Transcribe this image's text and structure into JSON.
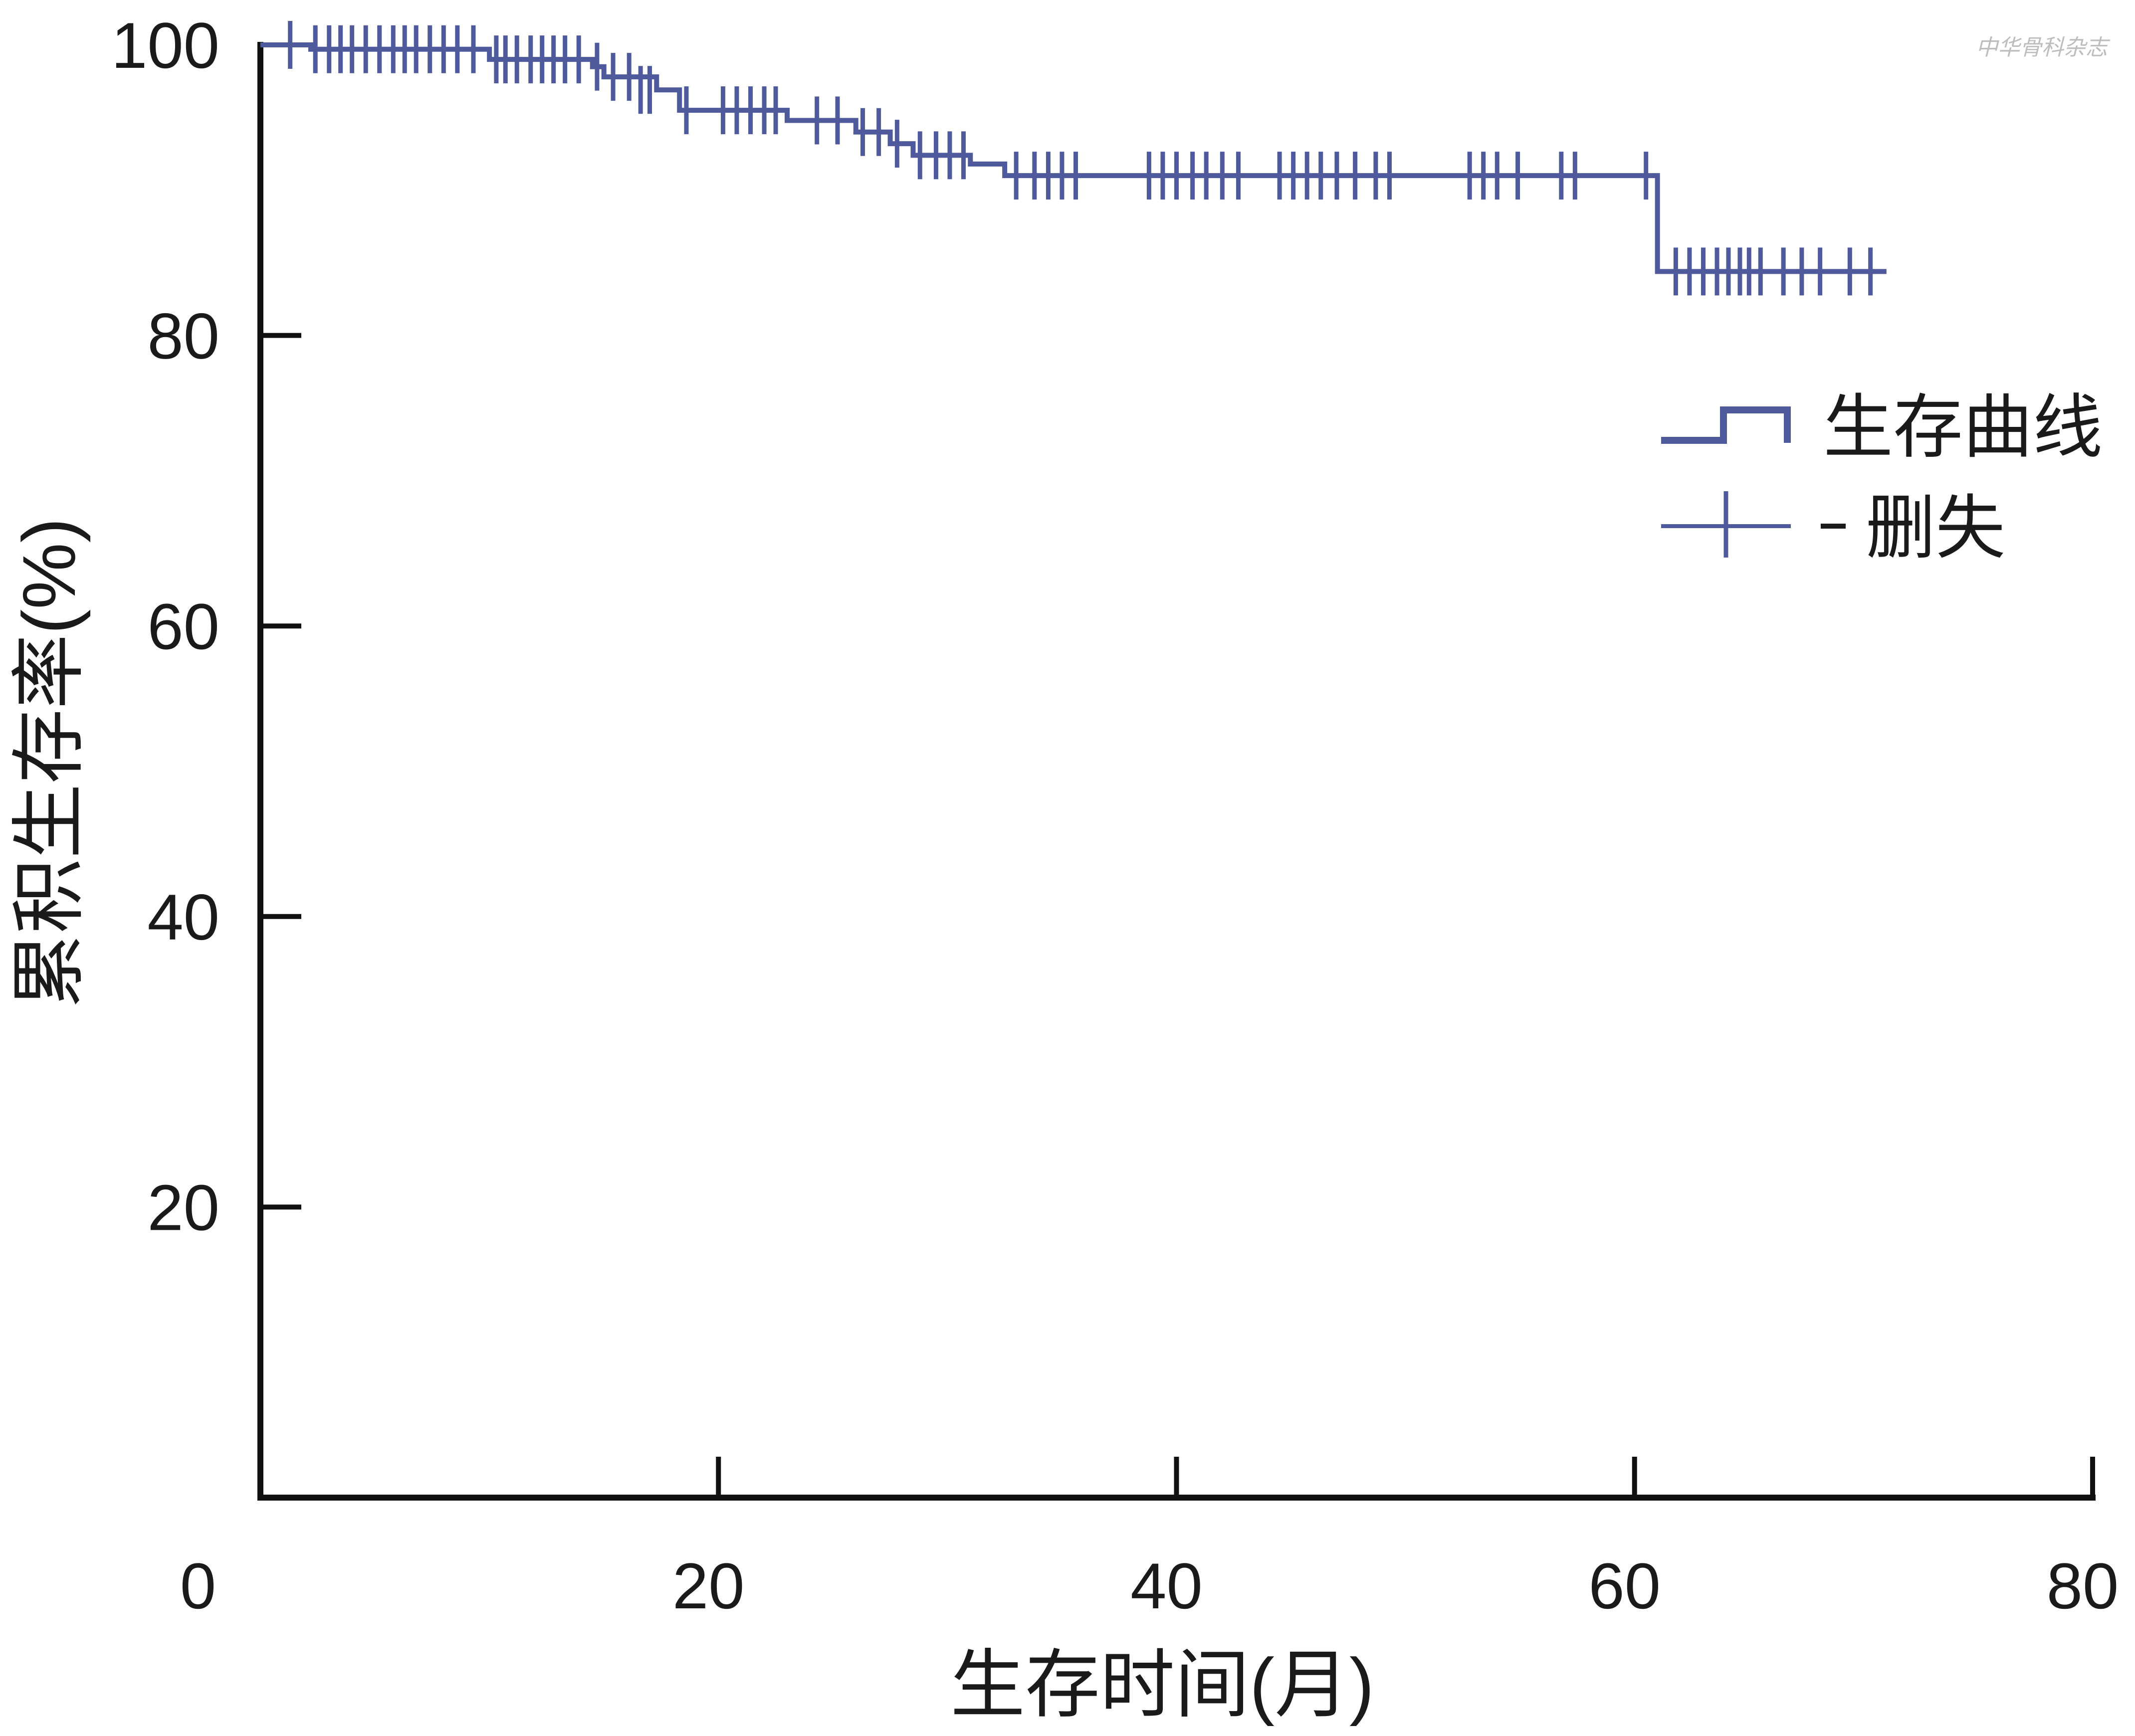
{
  "chart_data": {
    "type": "line",
    "subtype": "kaplan-meier",
    "xlabel": "生存时间(月)",
    "ylabel": "累积生存率(%)",
    "xlim": [
      0,
      80
    ],
    "ylim": [
      0,
      100
    ],
    "xticks": [
      "0",
      "20",
      "40",
      "60",
      "80"
    ],
    "yticks": [
      "20",
      "40",
      "60",
      "80",
      "100"
    ],
    "grid": false,
    "legend_position": "right",
    "series": [
      {
        "name": "生存曲线",
        "color": "#4f5a9c",
        "steps": [
          [
            0,
            100
          ],
          [
            2.2,
            99.7
          ],
          [
            10.0,
            99.0
          ],
          [
            14.5,
            98.5
          ],
          [
            15.0,
            97.8
          ],
          [
            17.3,
            96.9
          ],
          [
            18.3,
            95.5
          ],
          [
            23.0,
            94.8
          ],
          [
            26.0,
            94.0
          ],
          [
            27.5,
            93.2
          ],
          [
            28.5,
            92.4
          ],
          [
            31.0,
            91.8
          ],
          [
            32.5,
            91.0
          ],
          [
            61.0,
            84.4
          ],
          [
            71.0,
            84.4
          ]
        ]
      },
      {
        "name": "删失",
        "color": "#4f5a9c",
        "censored": [
          [
            1.3,
            100
          ],
          [
            2.4,
            99.7
          ],
          [
            3.0,
            99.7
          ],
          [
            3.5,
            99.7
          ],
          [
            4.0,
            99.7
          ],
          [
            4.6,
            99.7
          ],
          [
            5.2,
            99.7
          ],
          [
            5.8,
            99.7
          ],
          [
            6.3,
            99.7
          ],
          [
            6.8,
            99.7
          ],
          [
            7.4,
            99.7
          ],
          [
            8.0,
            99.7
          ],
          [
            8.6,
            99.7
          ],
          [
            9.3,
            99.7
          ],
          [
            10.3,
            99.0
          ],
          [
            10.7,
            99.0
          ],
          [
            11.2,
            99.0
          ],
          [
            11.8,
            99.0
          ],
          [
            12.3,
            99.0
          ],
          [
            12.8,
            99.0
          ],
          [
            13.3,
            99.0
          ],
          [
            13.9,
            99.0
          ],
          [
            14.7,
            98.5
          ],
          [
            15.4,
            97.8
          ],
          [
            16.1,
            97.8
          ],
          [
            16.6,
            96.9
          ],
          [
            17.0,
            96.9
          ],
          [
            18.6,
            95.5
          ],
          [
            20.2,
            95.5
          ],
          [
            20.8,
            95.5
          ],
          [
            21.4,
            95.5
          ],
          [
            22.0,
            95.5
          ],
          [
            22.5,
            95.5
          ],
          [
            24.3,
            94.8
          ],
          [
            25.2,
            94.8
          ],
          [
            26.3,
            94.0
          ],
          [
            27.0,
            94.0
          ],
          [
            27.8,
            93.2
          ],
          [
            28.8,
            92.4
          ],
          [
            29.5,
            92.4
          ],
          [
            30.1,
            92.4
          ],
          [
            30.7,
            92.4
          ],
          [
            33.0,
            91.0
          ],
          [
            33.8,
            91.0
          ],
          [
            34.4,
            91.0
          ],
          [
            35.0,
            91.0
          ],
          [
            35.6,
            91.0
          ],
          [
            38.8,
            91.0
          ],
          [
            39.4,
            91.0
          ],
          [
            40.0,
            91.0
          ],
          [
            40.7,
            91.0
          ],
          [
            41.3,
            91.0
          ],
          [
            42.0,
            91.0
          ],
          [
            42.7,
            91.0
          ],
          [
            44.5,
            91.0
          ],
          [
            45.1,
            91.0
          ],
          [
            45.7,
            91.0
          ],
          [
            46.3,
            91.0
          ],
          [
            47.0,
            91.0
          ],
          [
            47.8,
            91.0
          ],
          [
            48.7,
            91.0
          ],
          [
            49.3,
            91.0
          ],
          [
            52.8,
            91.0
          ],
          [
            53.4,
            91.0
          ],
          [
            54.0,
            91.0
          ],
          [
            54.9,
            91.0
          ],
          [
            56.8,
            91.0
          ],
          [
            57.4,
            91.0
          ],
          [
            60.5,
            91.0
          ],
          [
            61.8,
            84.4
          ],
          [
            62.4,
            84.4
          ],
          [
            63.0,
            84.4
          ],
          [
            63.6,
            84.4
          ],
          [
            64.1,
            84.4
          ],
          [
            64.6,
            84.4
          ],
          [
            65.0,
            84.4
          ],
          [
            65.5,
            84.4
          ],
          [
            66.5,
            84.4
          ],
          [
            67.3,
            84.4
          ],
          [
            68.1,
            84.4
          ],
          [
            69.4,
            84.4
          ],
          [
            70.3,
            84.4
          ]
        ]
      }
    ],
    "watermark": "中华骨科杂志"
  }
}
